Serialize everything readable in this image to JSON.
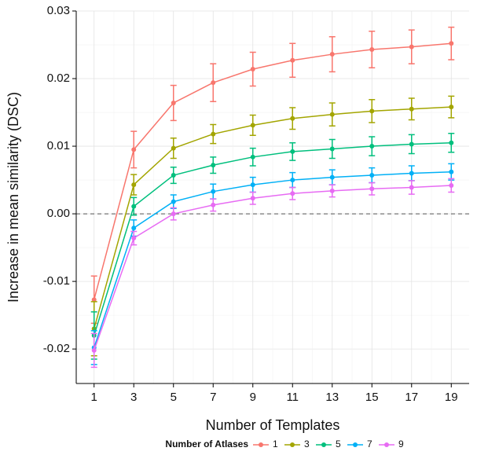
{
  "chart_data": {
    "type": "line",
    "x_label": "Number of Templates",
    "y_label": "Increase in mean similarity (DSC)",
    "x": [
      1,
      3,
      5,
      7,
      9,
      11,
      13,
      15,
      17,
      19
    ],
    "xlim": [
      0.1,
      19.9
    ],
    "xticks": [
      1,
      3,
      5,
      7,
      9,
      11,
      13,
      15,
      17,
      19
    ],
    "ylim": [
      -0.0251,
      0.03
    ],
    "yticks": [
      -0.02,
      -0.01,
      {
        "value": 0,
        "label": "0.00"
      },
      0.01,
      0.02,
      0.03
    ],
    "grid": true,
    "hline": 0,
    "legend_title": "Number of Atlases",
    "legend_position": "bottom",
    "series": [
      {
        "name": "1",
        "color": "#F8766D",
        "values": [
          -0.0127,
          0.0095,
          0.0164,
          0.0194,
          0.0214,
          0.0227,
          0.0236,
          0.0243,
          0.0247,
          0.0252
        ],
        "errors": [
          0.0035,
          0.0027,
          0.0026,
          0.0028,
          0.0025,
          0.0025,
          0.0026,
          0.0027,
          0.0025,
          0.0024
        ]
      },
      {
        "name": "3",
        "color": "#A3A500",
        "values": [
          -0.017,
          0.0043,
          0.0097,
          0.0118,
          0.0131,
          0.0141,
          0.0147,
          0.0152,
          0.0155,
          0.0158
        ],
        "errors": [
          0.004,
          0.0015,
          0.0015,
          0.0014,
          0.0015,
          0.0016,
          0.0017,
          0.0017,
          0.0016,
          0.0016
        ]
      },
      {
        "name": "5",
        "color": "#00BF7D",
        "values": [
          -0.018,
          0.0011,
          0.0057,
          0.0072,
          0.0084,
          0.0092,
          0.0096,
          0.01,
          0.0103,
          0.0105
        ],
        "errors": [
          0.0035,
          0.0013,
          0.0012,
          0.0012,
          0.0013,
          0.0013,
          0.0014,
          0.0014,
          0.0014,
          0.0014
        ]
      },
      {
        "name": "7",
        "color": "#00B0F6",
        "values": [
          -0.0198,
          -0.0021,
          0.0018,
          0.0033,
          0.0043,
          0.005,
          0.0054,
          0.0057,
          0.006,
          0.0062
        ],
        "errors": [
          0.0025,
          0.0012,
          0.001,
          0.0011,
          0.0011,
          0.0011,
          0.0011,
          0.0011,
          0.0011,
          0.0012
        ]
      },
      {
        "name": "9",
        "color": "#E76BF3",
        "values": [
          -0.0202,
          -0.0036,
          0,
          0.0013,
          0.0023,
          0.003,
          0.0034,
          0.0037,
          0.0039,
          0.0042
        ],
        "errors": [
          0.0025,
          0.001,
          0.0009,
          0.0009,
          0.0009,
          0.0009,
          0.0009,
          0.0009,
          0.001,
          0.001
        ]
      }
    ]
  }
}
